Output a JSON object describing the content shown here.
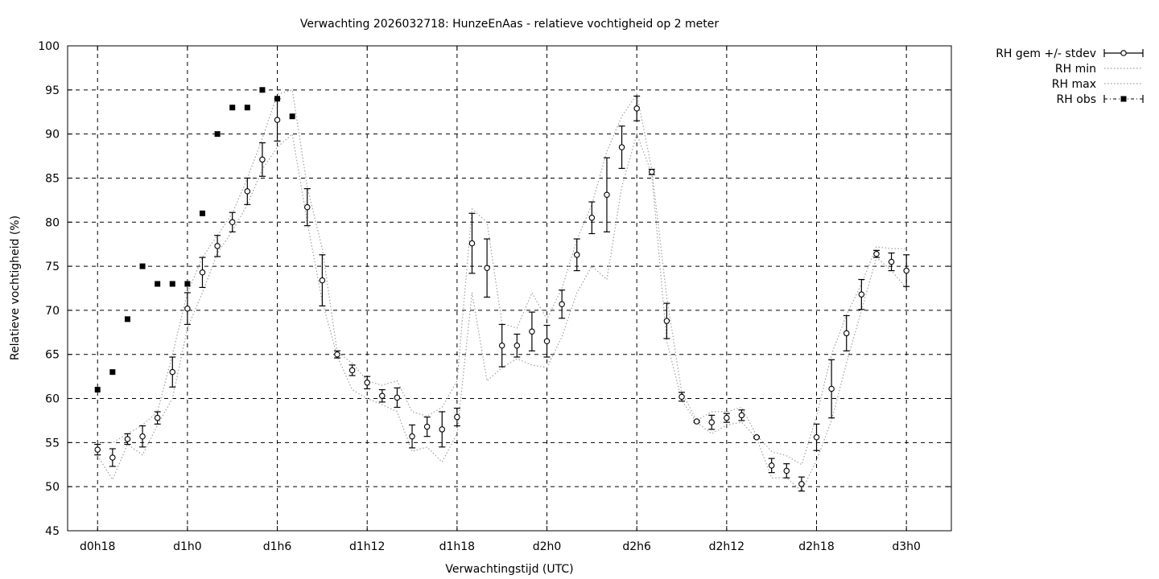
{
  "chart_data": {
    "type": "line",
    "title": "Verwachting 2026032718: HunzeEnAas - relatieve vochtigheid op 2 meter",
    "xlabel": "Verwachtingstijd (UTC)",
    "ylabel": "Relatieve vochtigheid (%)",
    "xlim": [
      16,
      75
    ],
    "ylim": [
      45,
      100
    ],
    "yticks": [
      45,
      50,
      55,
      60,
      65,
      70,
      75,
      80,
      85,
      90,
      95,
      100
    ],
    "xticks": [
      {
        "x": 18,
        "label": "d0h18"
      },
      {
        "x": 24,
        "label": "d1h0"
      },
      {
        "x": 30,
        "label": "d1h6"
      },
      {
        "x": 36,
        "label": "d1h12"
      },
      {
        "x": 42,
        "label": "d1h18"
      },
      {
        "x": 48,
        "label": "d2h0"
      },
      {
        "x": 54,
        "label": "d2h6"
      },
      {
        "x": 60,
        "label": "d2h12"
      },
      {
        "x": 66,
        "label": "d2h18"
      },
      {
        "x": 72,
        "label": "d3h0"
      }
    ],
    "grid": true,
    "legend_position": "outside-top-right",
    "x": [
      18,
      19,
      20,
      21,
      22,
      23,
      24,
      25,
      26,
      27,
      28,
      29,
      30,
      31,
      32,
      33,
      34,
      35,
      36,
      37,
      38,
      39,
      40,
      41,
      42,
      43,
      44,
      45,
      46,
      47,
      48,
      49,
      50,
      51,
      52,
      53,
      54,
      55,
      56,
      57,
      58,
      59,
      60,
      61,
      62,
      63,
      64,
      65,
      66,
      67,
      68,
      69,
      70,
      71,
      72
    ],
    "series": [
      {
        "name": "RH gem +/- stdev",
        "style": "errorbars",
        "mean": [
          54.2,
          53.3,
          55.4,
          55.7,
          57.8,
          63.0,
          70.2,
          74.3,
          77.3,
          80.0,
          83.5,
          87.1,
          91.6,
          null,
          81.7,
          73.4,
          65.0,
          63.2,
          61.8,
          60.3,
          60.1,
          55.7,
          56.8,
          56.5,
          57.9,
          77.6,
          74.8,
          66.0,
          66.0,
          67.6,
          66.5,
          70.7,
          76.3,
          80.5,
          83.1,
          88.5,
          92.9,
          85.7,
          68.8,
          60.2,
          57.4,
          57.3,
          57.8,
          58.1,
          55.6,
          52.4,
          51.8,
          50.3,
          55.6,
          61.1,
          67.4,
          71.8,
          76.4,
          75.5,
          74.5
        ],
        "stdev": [
          0.6,
          1.0,
          0.6,
          1.2,
          0.7,
          1.7,
          1.8,
          1.7,
          1.2,
          1.1,
          1.5,
          1.9,
          2.4,
          null,
          2.1,
          2.9,
          0.4,
          0.6,
          0.7,
          0.7,
          1.1,
          1.3,
          1.1,
          2.0,
          1.0,
          3.4,
          3.3,
          2.4,
          1.3,
          2.2,
          1.8,
          1.6,
          1.8,
          1.8,
          4.2,
          2.4,
          1.4,
          0.3,
          2.0,
          0.5,
          0.1,
          0.8,
          0.5,
          0.6,
          0.1,
          0.8,
          0.8,
          0.8,
          1.5,
          3.3,
          2.0,
          1.7,
          0.4,
          1.0,
          1.8
        ],
        "color": "#000000"
      },
      {
        "name": "RH min",
        "style": "dotted",
        "values": [
          53.5,
          50.8,
          54.8,
          53.6,
          57.0,
          60.0,
          68.0,
          72.0,
          76.5,
          79.0,
          82.0,
          86.0,
          88.5,
          90.0,
          80.0,
          71.0,
          64.8,
          61.0,
          60.0,
          59.3,
          58.5,
          54.0,
          54.5,
          52.8,
          56.0,
          72.0,
          62.0,
          63.5,
          64.5,
          63.8,
          63.5,
          67.0,
          72.0,
          75.0,
          73.5,
          84.0,
          90.0,
          85.5,
          66.5,
          59.8,
          57.3,
          56.0,
          57.0,
          57.3,
          55.5,
          51.0,
          51.0,
          49.5,
          53.0,
          57.5,
          64.0,
          70.0,
          76.0,
          74.5,
          72.5
        ],
        "color": "#a0a0a0"
      },
      {
        "name": "RH max",
        "style": "dotted",
        "values": [
          55.0,
          55.0,
          56.0,
          57.0,
          58.5,
          65.0,
          72.0,
          76.0,
          78.5,
          81.0,
          85.0,
          89.5,
          94.5,
          95.0,
          84.0,
          77.0,
          65.3,
          64.0,
          62.0,
          61.5,
          62.0,
          58.5,
          58.0,
          59.0,
          62.0,
          81.5,
          80.0,
          68.5,
          68.0,
          72.0,
          69.0,
          72.5,
          78.0,
          82.0,
          88.0,
          92.0,
          94.5,
          86.0,
          71.5,
          60.7,
          57.5,
          58.5,
          58.5,
          59.0,
          55.8,
          54.0,
          53.5,
          52.5,
          58.0,
          65.0,
          69.5,
          73.0,
          77.2,
          77.0,
          77.0
        ],
        "color": "#a0a0a0"
      },
      {
        "name": "RH obs",
        "style": "points-square",
        "values": [
          61,
          63,
          69,
          75,
          73,
          73,
          73,
          81,
          90,
          93,
          93,
          95,
          94,
          92,
          null,
          null,
          null,
          null,
          null,
          null,
          null,
          null,
          null,
          null,
          null,
          null,
          null,
          null,
          null,
          null,
          null,
          null,
          null,
          null,
          null,
          null,
          null,
          null,
          null,
          null,
          null,
          null,
          null,
          null,
          null,
          null,
          null,
          null,
          null,
          null,
          null,
          null,
          null,
          null,
          null
        ],
        "color": "#000000"
      }
    ]
  }
}
